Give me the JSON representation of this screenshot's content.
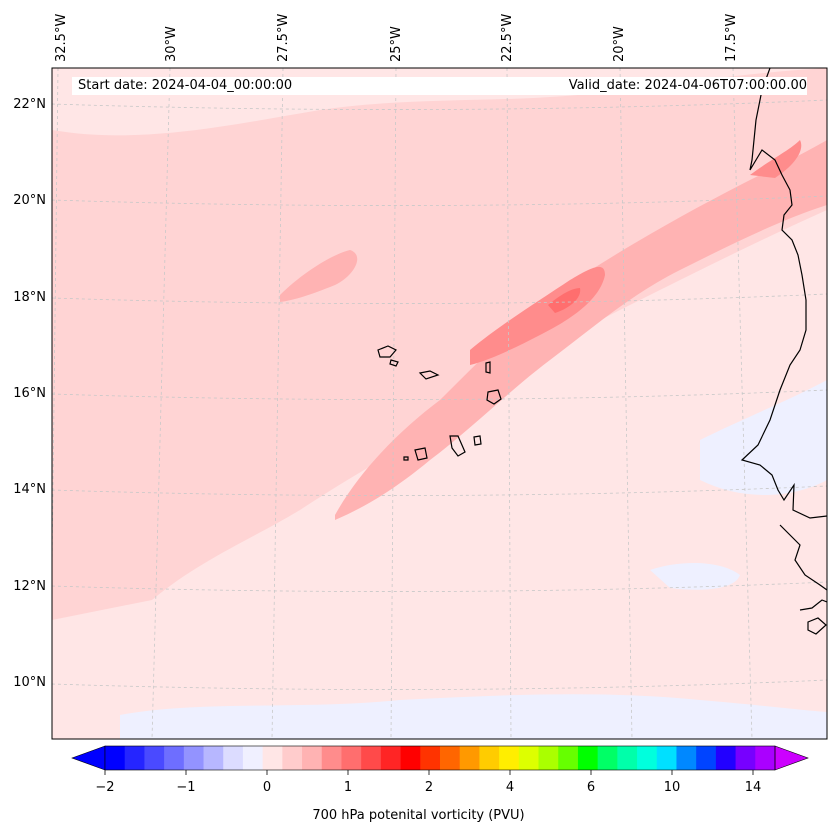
{
  "map": {
    "start_date_label": "Start date: 2024-04-04_00:00:00",
    "valid_date_label": "Valid_date: 2024-04-06T07:00:00.00",
    "lon_labels": [
      "32.5°W",
      "30°W",
      "27.5°W",
      "25°W",
      "22.5°W",
      "20°W",
      "17.5°W"
    ],
    "lat_labels": [
      "22°N",
      "20°N",
      "18°N",
      "16°N",
      "14°N",
      "12°N",
      "10°N"
    ],
    "colors": {
      "background_field": "#ffe6e6",
      "light_positive": "#ffd4d4",
      "medium_positive": "#ffb3b3",
      "strong_positive": "#ff8c8c",
      "core_positive": "#ff6e6e",
      "light_negative": "#eef0ff",
      "coastline": "#000000",
      "gridline": "#c8c8c8"
    }
  },
  "colorbar": {
    "title": "700 hPa potenital vorticity (PVU)",
    "tick_labels": [
      "−2",
      "−1",
      "0",
      "1",
      "2",
      "4",
      "6",
      "10",
      "14"
    ],
    "colors": [
      "#0000ff",
      "#2525ff",
      "#4a4aff",
      "#6e6eff",
      "#9393ff",
      "#b7b7ff",
      "#dcdcff",
      "#f0f0ff",
      "#ffe6e6",
      "#ffcccc",
      "#ffb3b3",
      "#ff8c8c",
      "#ff6e6e",
      "#ff4a4a",
      "#ff2525",
      "#ff0000",
      "#ff3300",
      "#ff6600",
      "#ff9900",
      "#ffcc00",
      "#ffee00",
      "#ddff00",
      "#aaff00",
      "#66ff00",
      "#00ff00",
      "#00ff66",
      "#00ffaa",
      "#00ffdd",
      "#00e0ff",
      "#0088ff",
      "#0044ff",
      "#2200ff",
      "#7700ff",
      "#aa00ff"
    ],
    "extend_low_color": "#0000ff",
    "extend_high_color": "#cc00ff"
  }
}
